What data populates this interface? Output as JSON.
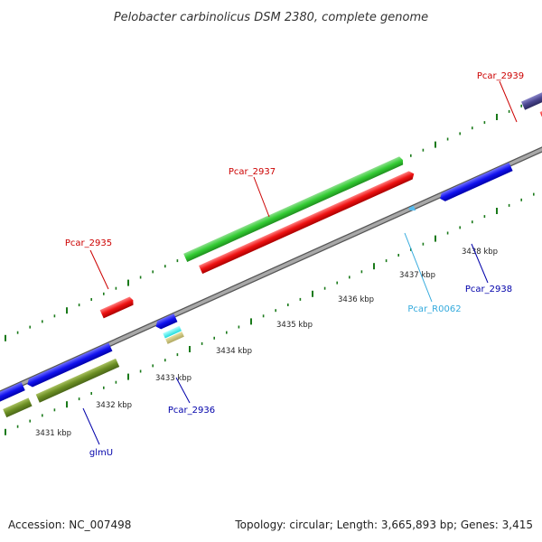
{
  "title": "Pelobacter carbinolicus DSM 2380, complete genome",
  "footer": {
    "accession": "Accession: NC_007498",
    "summary": "Topology: circular; Length: 3,665,893 bp; Genes: 3,415"
  },
  "colors": {
    "backbone": "#888888",
    "forward_label": "#cc0000",
    "reverse_label": "#0000aa",
    "rna_label": "#33aadd",
    "tick": "#1a7a1a"
  },
  "scale_labels": [
    "3431 kbp",
    "3432 kbp",
    "3433 kbp",
    "3434 kbp",
    "3435 kbp",
    "3436 kbp",
    "3437 kbp",
    "3438 kbp"
  ],
  "gene_labels": [
    {
      "text": "Pcar_2935",
      "kind": "forward"
    },
    {
      "text": "Pcar_2937",
      "kind": "forward"
    },
    {
      "text": "Pcar_2939",
      "kind": "forward"
    },
    {
      "text": "Pcar_R0062",
      "kind": "rna"
    },
    {
      "text": "Pcar_2938",
      "kind": "reverse"
    },
    {
      "text": "Pcar_2936",
      "kind": "reverse"
    },
    {
      "text": "glmU",
      "kind": "reverse"
    }
  ]
}
